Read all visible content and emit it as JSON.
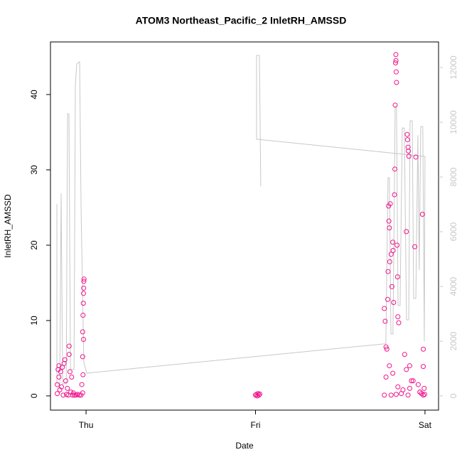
{
  "chart_data": {
    "type": "scatter",
    "title": "ATOM3 Northeast_Pacific_2 InletRH_AMSSD",
    "xlabel": "Date",
    "ylabel": "InletRH_AMSSD",
    "xlim": [
      -0.21,
      2.08
    ],
    "ylim": [
      -1.89,
      46.98
    ],
    "y2lim": [
      -520,
      12935
    ],
    "xticks": [
      {
        "value": 0,
        "label": "Thu"
      },
      {
        "value": 1,
        "label": "Fri"
      },
      {
        "value": 2,
        "label": "Sat"
      }
    ],
    "yticks": [
      0,
      10,
      20,
      30,
      40
    ],
    "y2ticks": [
      0,
      2000,
      4000,
      6000,
      8000,
      10000,
      12000
    ],
    "series": [
      {
        "color": "#f0148c",
        "mark": "points",
        "x": [
          -0.17,
          -0.17,
          -0.165,
          -0.16,
          -0.16,
          -0.155,
          -0.15,
          -0.145,
          -0.14,
          -0.135,
          -0.13,
          -0.125,
          -0.12,
          -0.115,
          -0.11,
          -0.105,
          -0.1,
          -0.1,
          -0.095,
          -0.09,
          -0.085,
          -0.08,
          -0.075,
          -0.07,
          -0.06,
          -0.05,
          -0.04,
          -0.03,
          -0.025,
          -0.02,
          -0.02,
          -0.018,
          -0.016,
          -0.015,
          -0.014,
          -0.013,
          -0.012,
          -0.015,
          -0.02,
          -0.018,
          1.0,
          1.005,
          1.01,
          1.015,
          1.02,
          1.025,
          1.76,
          1.765,
          1.77,
          1.775,
          1.78,
          1.782,
          1.785,
          1.787,
          1.79,
          1.792,
          1.795,
          1.8,
          1.805,
          1.81,
          1.812,
          1.815,
          1.82,
          1.822,
          1.824,
          1.826,
          1.828,
          1.829,
          1.83,
          1.832,
          1.835,
          1.838,
          1.84,
          1.845,
          1.895,
          1.897,
          1.9,
          1.902,
          1.905,
          1.89,
          1.88,
          1.91,
          1.92,
          1.946,
          1.94,
          1.96,
          1.97,
          1.98,
          1.985,
          1.99,
          1.99,
          1.995,
          1.998,
          1.76,
          1.8,
          1.83,
          1.86,
          1.9,
          1.97,
          1.99,
          1.77,
          1.79,
          1.81,
          1.84,
          1.87,
          1.89,
          1.91,
          1.93
        ],
        "values": [
          0.3,
          1.5,
          3.5,
          4.0,
          2.5,
          0.8,
          3.2,
          1.2,
          3.8,
          0.1,
          4.3,
          4.8,
          2.0,
          0.2,
          1.0,
          0.1,
          6.6,
          5.5,
          3.2,
          0.5,
          2.5,
          0.1,
          0.4,
          0.1,
          0.1,
          0.2,
          0.1,
          0.1,
          1.5,
          5.2,
          8.5,
          10.7,
          12.3,
          13.6,
          14.3,
          15.2,
          15.5,
          7.5,
          0.4,
          2.8,
          0.1,
          0.2,
          0.0,
          0.3,
          0.1,
          0.25,
          11.6,
          9.9,
          6.5,
          6.2,
          12.8,
          16.5,
          25.2,
          23.2,
          22.3,
          17.8,
          25.5,
          18.8,
          14.5,
          20.4,
          19.3,
          12.4,
          26.7,
          30.1,
          38.6,
          44.2,
          45.3,
          44.5,
          43.0,
          41.6,
          20.0,
          15.8,
          10.5,
          9.7,
          34.7,
          34.0,
          33.0,
          32.5,
          31.8,
          21.8,
          5.5,
          4.0,
          2.0,
          31.7,
          19.8,
          1.5,
          0.5,
          0.3,
          24.1,
          6.2,
          3.9,
          1.0,
          0.2,
          0.1,
          0.1,
          0.2,
          0.3,
          0.1,
          0.5,
          0.1,
          2.5,
          4.0,
          3.0,
          1.2,
          0.8,
          3.5,
          1.0,
          2.0
        ]
      },
      {
        "color": "#c8c8c8",
        "mark": "line",
        "axis": "y2",
        "x": [
          -0.172,
          -0.172,
          -0.155,
          -0.147,
          -0.138,
          -0.117,
          -0.109,
          -0.101,
          -0.092,
          -0.071,
          -0.063,
          -0.055,
          -0.038,
          -0.029,
          -0.013,
          0.004,
          1.757,
          1.769,
          1.782,
          1.79,
          1.799,
          1.811,
          1.824,
          1.832,
          1.841,
          1.853,
          1.866,
          1.878,
          1.891,
          1.904,
          1.912,
          1.925,
          1.933,
          1.946,
          1.958,
          1.966,
          1.975,
          1.987,
          1.996,
          2.0,
          1.006,
          1.006,
          1.023,
          1.031
        ],
        "values": [
          7010,
          440,
          440,
          7400,
          440,
          440,
          10310,
          10310,
          960,
          960,
          11350,
          12130,
          12210,
          6680,
          1220,
          830,
          1900,
          1900,
          7970,
          7970,
          2260,
          2260,
          10570,
          10570,
          3300,
          3300,
          9790,
          9790,
          2780,
          2780,
          10050,
          10050,
          3560,
          3560,
          9530,
          4600,
          9840,
          9840,
          2000,
          8750,
          9380,
          12440,
          12440,
          7660
        ]
      }
    ]
  }
}
